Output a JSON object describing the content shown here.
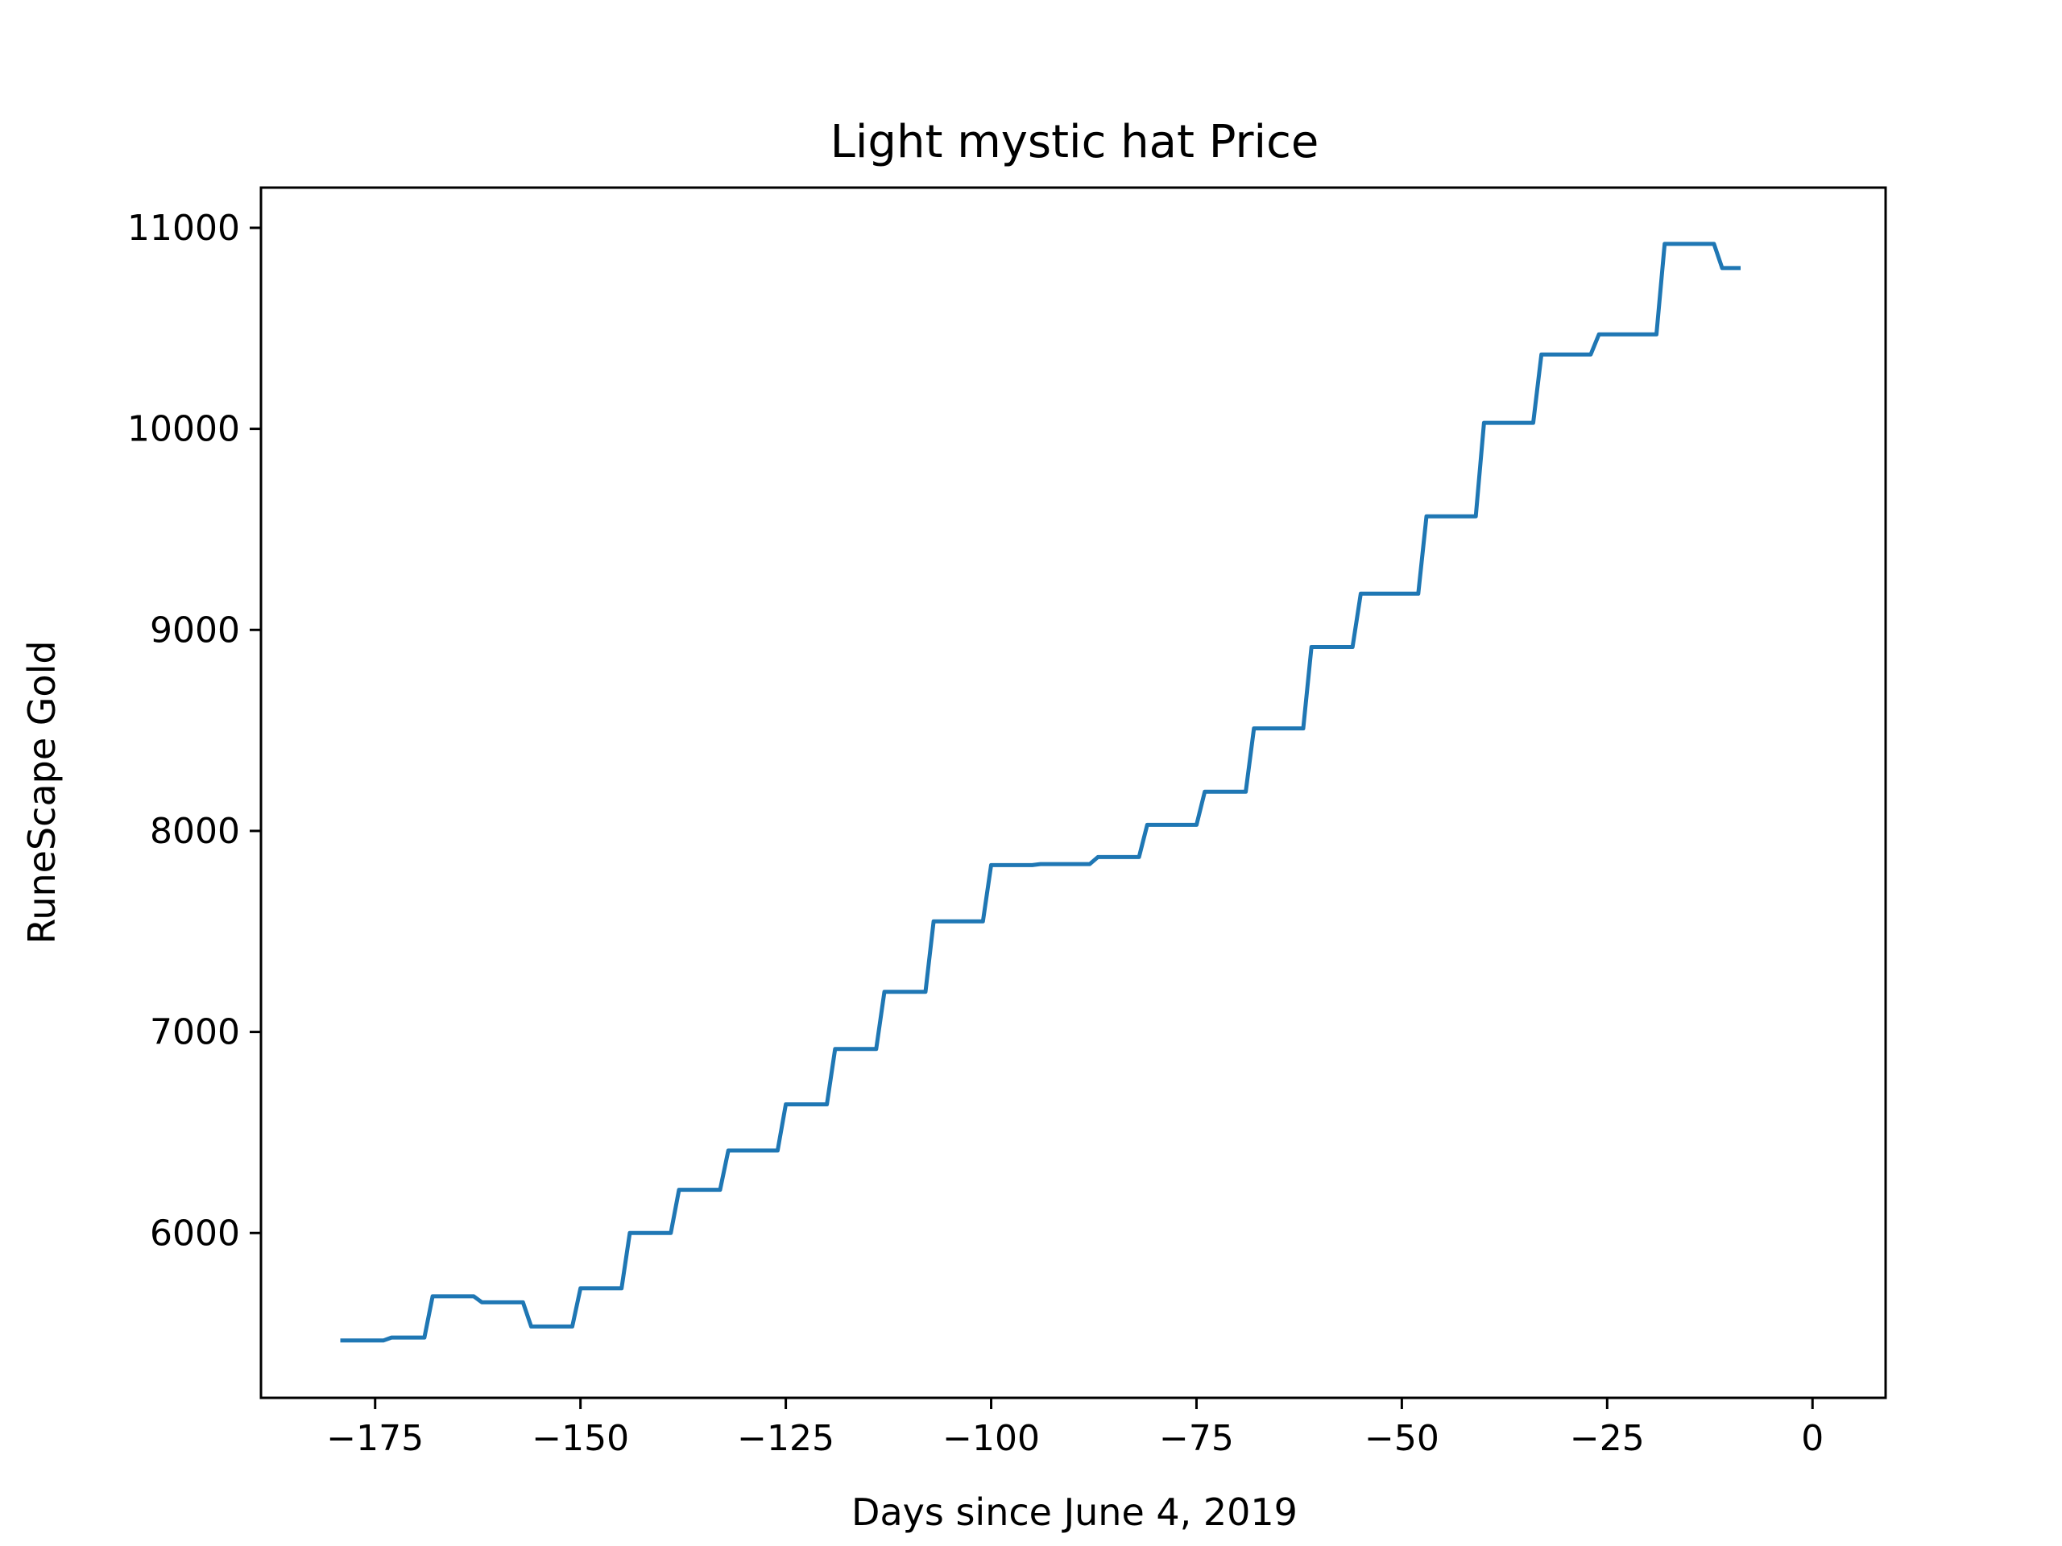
{
  "chart_data": {
    "type": "line",
    "title": "Light mystic hat Price",
    "xlabel": "Days since June 4, 2019",
    "ylabel": "RuneScape Gold",
    "xlim": [
      -188.9,
      8.9
    ],
    "ylim": [
      5180,
      11200
    ],
    "xticks": [
      -175,
      -150,
      -125,
      -100,
      -75,
      -50,
      -25,
      0
    ],
    "xtick_labels": [
      "−175",
      "−150",
      "−125",
      "−100",
      "−75",
      "−50",
      "−25",
      "0"
    ],
    "yticks": [
      6000,
      7000,
      8000,
      9000,
      10000,
      11000
    ],
    "ytick_labels": [
      "6000",
      "7000",
      "8000",
      "9000",
      "10000",
      "11000"
    ],
    "grid": false,
    "legend": "none",
    "series": [
      {
        "color": "#1f77b4",
        "points": [
          [
            -179,
            5465
          ],
          [
            -174,
            5465
          ],
          [
            -173,
            5480
          ],
          [
            -169,
            5480
          ],
          [
            -168,
            5685
          ],
          [
            -163,
            5685
          ],
          [
            -162,
            5655
          ],
          [
            -157,
            5655
          ],
          [
            -156,
            5535
          ],
          [
            -151,
            5535
          ],
          [
            -150,
            5725
          ],
          [
            -145,
            5725
          ],
          [
            -144,
            6000
          ],
          [
            -139,
            6000
          ],
          [
            -138,
            6215
          ],
          [
            -133,
            6215
          ],
          [
            -132,
            6410
          ],
          [
            -126,
            6410
          ],
          [
            -125,
            6640
          ],
          [
            -120,
            6640
          ],
          [
            -119,
            6915
          ],
          [
            -114,
            6915
          ],
          [
            -113,
            7200
          ],
          [
            -108,
            7200
          ],
          [
            -107,
            7550
          ],
          [
            -101,
            7550
          ],
          [
            -100,
            7830
          ],
          [
            -95,
            7830
          ],
          [
            -94,
            7835
          ],
          [
            -88,
            7835
          ],
          [
            -87,
            7870
          ],
          [
            -82,
            7870
          ],
          [
            -81,
            8030
          ],
          [
            -75,
            8030
          ],
          [
            -74,
            8195
          ],
          [
            -69,
            8195
          ],
          [
            -68,
            8510
          ],
          [
            -62,
            8510
          ],
          [
            -61,
            8915
          ],
          [
            -56,
            8915
          ],
          [
            -55,
            9180
          ],
          [
            -48,
            9180
          ],
          [
            -47,
            9565
          ],
          [
            -41,
            9565
          ],
          [
            -40,
            10030
          ],
          [
            -34,
            10030
          ],
          [
            -33,
            10370
          ],
          [
            -27,
            10370
          ],
          [
            -26,
            10470
          ],
          [
            -19,
            10470
          ],
          [
            -18,
            10920
          ],
          [
            -12,
            10920
          ],
          [
            -11,
            10800
          ],
          [
            -9,
            10800
          ]
        ]
      }
    ]
  }
}
